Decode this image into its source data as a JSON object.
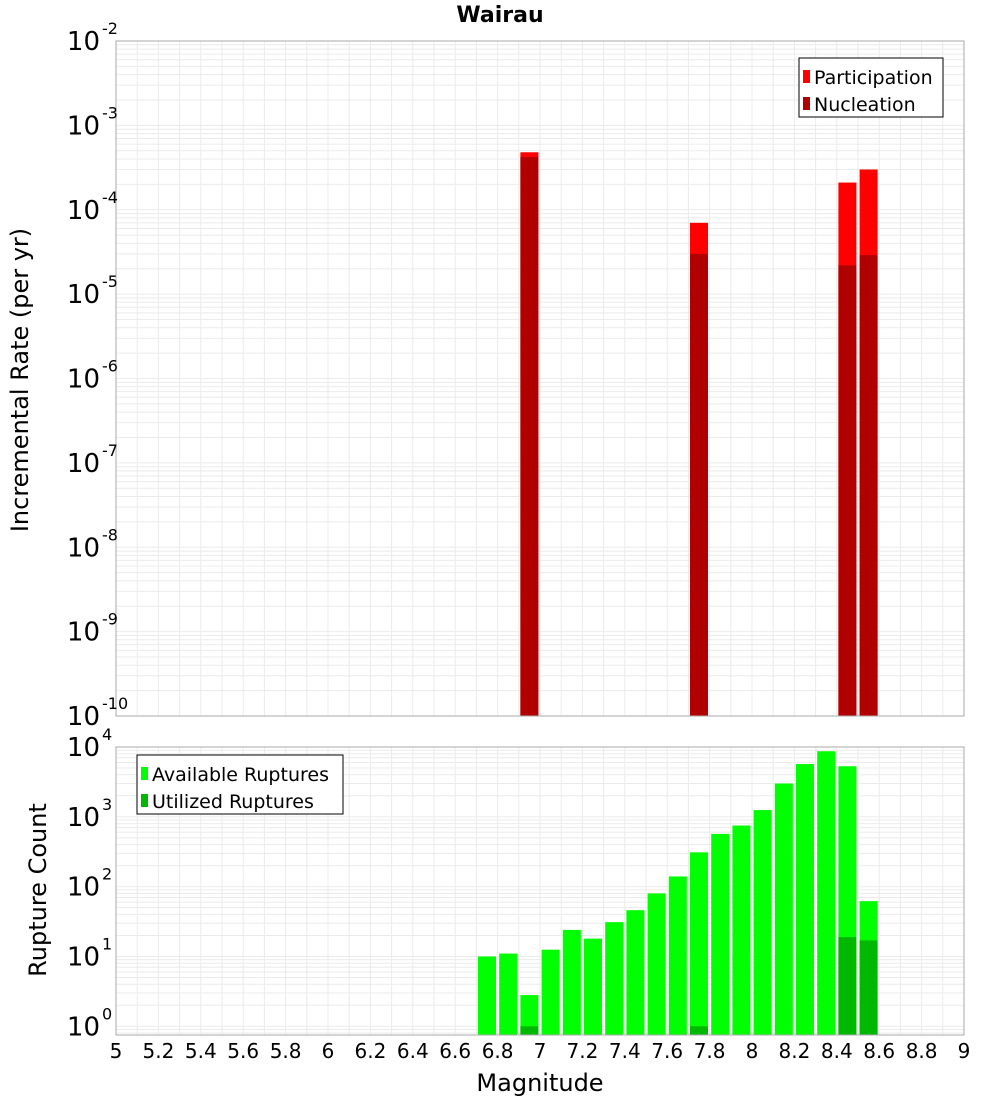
{
  "chart_data": [
    {
      "type": "bar",
      "title": "Wairau",
      "xlabel": "",
      "ylabel": "Incremental Rate (per yr)",
      "yscale": "log",
      "xlim": [
        5,
        9
      ],
      "ylim": [
        1e-10,
        0.01
      ],
      "grid": true,
      "legend_placement": "top-right",
      "y_ticks": [
        {
          "base": "10",
          "exp": "-10"
        },
        {
          "base": "10",
          "exp": "-9"
        },
        {
          "base": "10",
          "exp": "-8"
        },
        {
          "base": "10",
          "exp": "-7"
        },
        {
          "base": "10",
          "exp": "-6"
        },
        {
          "base": "10",
          "exp": "-5"
        },
        {
          "base": "10",
          "exp": "-4"
        },
        {
          "base": "10",
          "exp": "-3"
        },
        {
          "base": "10",
          "exp": "-2"
        }
      ],
      "x": [
        6.95,
        7.75,
        8.45,
        8.55
      ],
      "series": [
        {
          "name": "Participation",
          "color": "#ff0000",
          "values": [
            0.00048,
            7e-05,
            0.00021,
            0.0003
          ]
        },
        {
          "name": "Nucleation",
          "color": "#b00000",
          "values": [
            0.00042,
            3e-05,
            2.2e-05,
            2.9e-05
          ]
        }
      ]
    },
    {
      "type": "bar",
      "title": "",
      "xlabel": "Magnitude",
      "ylabel": "Rupture Count",
      "yscale": "log",
      "xlim": [
        5,
        9
      ],
      "ylim": [
        0.75,
        10000
      ],
      "grid": true,
      "legend_placement": "top-left",
      "x_ticks": [
        "5",
        "5.2",
        "5.4",
        "5.6",
        "5.8",
        "6",
        "6.2",
        "6.4",
        "6.6",
        "6.8",
        "7",
        "7.2",
        "7.4",
        "7.6",
        "7.8",
        "8",
        "8.2",
        "8.4",
        "8.6",
        "8.8",
        "9"
      ],
      "y_ticks": [
        {
          "base": "10",
          "exp": "0"
        },
        {
          "base": "10",
          "exp": "1"
        },
        {
          "base": "10",
          "exp": "2"
        },
        {
          "base": "10",
          "exp": "3"
        },
        {
          "base": "10",
          "exp": "4"
        }
      ],
      "x": [
        6.75,
        6.85,
        6.95,
        7.05,
        7.15,
        7.25,
        7.35,
        7.45,
        7.55,
        7.65,
        7.75,
        7.85,
        7.95,
        8.05,
        8.15,
        8.25,
        8.35,
        8.45,
        8.55
      ],
      "series": [
        {
          "name": "Available Ruptures",
          "color": "#00ff00",
          "values": [
            10,
            11,
            2.8,
            12.5,
            24,
            18,
            31,
            46,
            80,
            140,
            310,
            570,
            750,
            1250,
            3000,
            5700,
            8700,
            5300,
            62
          ]
        },
        {
          "name": "Utilized Ruptures",
          "color": "#00b800",
          "values": [
            null,
            null,
            1,
            null,
            null,
            null,
            null,
            null,
            null,
            null,
            1,
            null,
            null,
            null,
            null,
            null,
            null,
            19,
            17
          ]
        }
      ]
    }
  ]
}
